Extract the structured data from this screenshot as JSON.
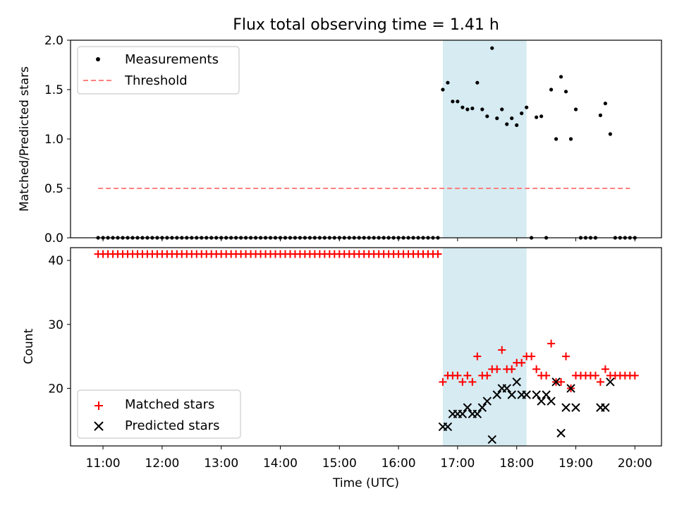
{
  "title": "Flux total observing time = 1.41 h",
  "colors": {
    "shade": "#add8e6",
    "threshold": "#ff8080",
    "matched": "#ff0000",
    "predicted": "#000000",
    "measure": "#000000"
  },
  "chart_data": [
    {
      "type": "scatter",
      "ylabel": "Matched/Predicted stars",
      "ylim": [
        0,
        2
      ],
      "yticks": [
        "0.0",
        "0.5",
        "1.0",
        "1.5",
        "2.0"
      ],
      "legend": {
        "position": "top-left",
        "entries": [
          "Measurements",
          "Threshold"
        ]
      },
      "shaded_interval": [
        "16:45",
        "18:10"
      ],
      "threshold": {
        "y": 0.5,
        "x_start": "10:55",
        "x_end": "19:55"
      },
      "series": [
        {
          "name": "Measurements",
          "points": [
            [
              "10:55",
              0
            ],
            [
              "11:00",
              0
            ],
            [
              "11:05",
              0
            ],
            [
              "11:10",
              0
            ],
            [
              "11:15",
              0
            ],
            [
              "11:20",
              0
            ],
            [
              "11:25",
              0
            ],
            [
              "11:30",
              0
            ],
            [
              "11:35",
              0
            ],
            [
              "11:40",
              0
            ],
            [
              "11:45",
              0
            ],
            [
              "11:50",
              0
            ],
            [
              "11:55",
              0
            ],
            [
              "12:00",
              0
            ],
            [
              "12:05",
              0
            ],
            [
              "12:10",
              0
            ],
            [
              "12:15",
              0
            ],
            [
              "12:20",
              0
            ],
            [
              "12:25",
              0
            ],
            [
              "12:30",
              0
            ],
            [
              "12:35",
              0
            ],
            [
              "12:40",
              0
            ],
            [
              "12:45",
              0
            ],
            [
              "12:50",
              0
            ],
            [
              "12:55",
              0
            ],
            [
              "13:00",
              0
            ],
            [
              "13:05",
              0
            ],
            [
              "13:10",
              0
            ],
            [
              "13:15",
              0
            ],
            [
              "13:20",
              0
            ],
            [
              "13:25",
              0
            ],
            [
              "13:30",
              0
            ],
            [
              "13:35",
              0
            ],
            [
              "13:40",
              0
            ],
            [
              "13:45",
              0
            ],
            [
              "13:50",
              0
            ],
            [
              "13:55",
              0
            ],
            [
              "14:00",
              0
            ],
            [
              "14:05",
              0
            ],
            [
              "14:10",
              0
            ],
            [
              "14:15",
              0
            ],
            [
              "14:20",
              0
            ],
            [
              "14:25",
              0
            ],
            [
              "14:30",
              0
            ],
            [
              "14:35",
              0
            ],
            [
              "14:40",
              0
            ],
            [
              "14:45",
              0
            ],
            [
              "14:50",
              0
            ],
            [
              "14:55",
              0
            ],
            [
              "15:00",
              0
            ],
            [
              "15:05",
              0
            ],
            [
              "15:10",
              0
            ],
            [
              "15:15",
              0
            ],
            [
              "15:20",
              0
            ],
            [
              "15:25",
              0
            ],
            [
              "15:30",
              0
            ],
            [
              "15:35",
              0
            ],
            [
              "15:40",
              0
            ],
            [
              "15:45",
              0
            ],
            [
              "15:50",
              0
            ],
            [
              "15:55",
              0
            ],
            [
              "16:00",
              0
            ],
            [
              "16:05",
              0
            ],
            [
              "16:10",
              0
            ],
            [
              "16:15",
              0
            ],
            [
              "16:20",
              0
            ],
            [
              "16:25",
              0
            ],
            [
              "16:30",
              0
            ],
            [
              "16:35",
              0
            ],
            [
              "16:40",
              0
            ],
            [
              "16:45",
              1.5
            ],
            [
              "16:50",
              1.57
            ],
            [
              "16:55",
              1.38
            ],
            [
              "17:00",
              1.38
            ],
            [
              "17:05",
              1.32
            ],
            [
              "17:10",
              1.3
            ],
            [
              "17:15",
              1.31
            ],
            [
              "17:20",
              1.57
            ],
            [
              "17:25",
              1.3
            ],
            [
              "17:30",
              1.23
            ],
            [
              "17:35",
              1.92
            ],
            [
              "17:40",
              1.21
            ],
            [
              "17:45",
              1.3
            ],
            [
              "17:50",
              1.15
            ],
            [
              "17:55",
              1.21
            ],
            [
              "18:00",
              1.14
            ],
            [
              "18:05",
              1.26
            ],
            [
              "18:10",
              1.32
            ],
            [
              "18:15",
              0
            ],
            [
              "18:20",
              1.22
            ],
            [
              "18:25",
              1.23
            ],
            [
              "18:30",
              0
            ],
            [
              "18:35",
              1.5
            ],
            [
              "18:40",
              1.0
            ],
            [
              "18:45",
              1.63
            ],
            [
              "18:50",
              1.48
            ],
            [
              "18:55",
              1.0
            ],
            [
              "19:00",
              1.3
            ],
            [
              "19:05",
              0
            ],
            [
              "19:10",
              0
            ],
            [
              "19:15",
              0
            ],
            [
              "19:20",
              0
            ],
            [
              "19:25",
              1.24
            ],
            [
              "19:30",
              1.36
            ],
            [
              "19:35",
              1.05
            ],
            [
              "19:40",
              0
            ],
            [
              "19:45",
              0
            ],
            [
              "19:50",
              0
            ],
            [
              "19:55",
              0
            ],
            [
              "20:00",
              0
            ]
          ]
        }
      ]
    },
    {
      "type": "scatter",
      "ylabel": "Count",
      "xlabel": "Time (UTC)",
      "ylim": [
        11,
        42
      ],
      "yticks": [
        "20",
        "30",
        "40"
      ],
      "xticks": [
        "11:00",
        "12:00",
        "13:00",
        "14:00",
        "15:00",
        "16:00",
        "17:00",
        "18:00",
        "19:00",
        "20:00"
      ],
      "legend": {
        "position": "bottom-left",
        "entries": [
          "Matched stars",
          "Predicted stars"
        ]
      },
      "shaded_interval": [
        "16:45",
        "18:10"
      ],
      "series": [
        {
          "name": "Matched stars",
          "points": [
            [
              "10:55",
              41
            ],
            [
              "11:00",
              41
            ],
            [
              "11:05",
              41
            ],
            [
              "11:10",
              41
            ],
            [
              "11:15",
              41
            ],
            [
              "11:20",
              41
            ],
            [
              "11:25",
              41
            ],
            [
              "11:30",
              41
            ],
            [
              "11:35",
              41
            ],
            [
              "11:40",
              41
            ],
            [
              "11:45",
              41
            ],
            [
              "11:50",
              41
            ],
            [
              "11:55",
              41
            ],
            [
              "12:00",
              41
            ],
            [
              "12:05",
              41
            ],
            [
              "12:10",
              41
            ],
            [
              "12:15",
              41
            ],
            [
              "12:20",
              41
            ],
            [
              "12:25",
              41
            ],
            [
              "12:30",
              41
            ],
            [
              "12:35",
              41
            ],
            [
              "12:40",
              41
            ],
            [
              "12:45",
              41
            ],
            [
              "12:50",
              41
            ],
            [
              "12:55",
              41
            ],
            [
              "13:00",
              41
            ],
            [
              "13:05",
              41
            ],
            [
              "13:10",
              41
            ],
            [
              "13:15",
              41
            ],
            [
              "13:20",
              41
            ],
            [
              "13:25",
              41
            ],
            [
              "13:30",
              41
            ],
            [
              "13:35",
              41
            ],
            [
              "13:40",
              41
            ],
            [
              "13:45",
              41
            ],
            [
              "13:50",
              41
            ],
            [
              "13:55",
              41
            ],
            [
              "14:00",
              41
            ],
            [
              "14:05",
              41
            ],
            [
              "14:10",
              41
            ],
            [
              "14:15",
              41
            ],
            [
              "14:20",
              41
            ],
            [
              "14:25",
              41
            ],
            [
              "14:30",
              41
            ],
            [
              "14:35",
              41
            ],
            [
              "14:40",
              41
            ],
            [
              "14:45",
              41
            ],
            [
              "14:50",
              41
            ],
            [
              "14:55",
              41
            ],
            [
              "15:00",
              41
            ],
            [
              "15:05",
              41
            ],
            [
              "15:10",
              41
            ],
            [
              "15:15",
              41
            ],
            [
              "15:20",
              41
            ],
            [
              "15:25",
              41
            ],
            [
              "15:30",
              41
            ],
            [
              "15:35",
              41
            ],
            [
              "15:40",
              41
            ],
            [
              "15:45",
              41
            ],
            [
              "15:50",
              41
            ],
            [
              "15:55",
              41
            ],
            [
              "16:00",
              41
            ],
            [
              "16:05",
              41
            ],
            [
              "16:10",
              41
            ],
            [
              "16:15",
              41
            ],
            [
              "16:20",
              41
            ],
            [
              "16:25",
              41
            ],
            [
              "16:30",
              41
            ],
            [
              "16:35",
              41
            ],
            [
              "16:40",
              41
            ],
            [
              "16:45",
              21
            ],
            [
              "16:50",
              22
            ],
            [
              "16:55",
              22
            ],
            [
              "17:00",
              22
            ],
            [
              "17:05",
              21
            ],
            [
              "17:10",
              22
            ],
            [
              "17:15",
              21
            ],
            [
              "17:20",
              25
            ],
            [
              "17:25",
              22
            ],
            [
              "17:30",
              22
            ],
            [
              "17:35",
              23
            ],
            [
              "17:40",
              23
            ],
            [
              "17:45",
              26
            ],
            [
              "17:50",
              23
            ],
            [
              "17:55",
              23
            ],
            [
              "18:00",
              24
            ],
            [
              "18:05",
              24
            ],
            [
              "18:10",
              25
            ],
            [
              "18:15",
              25
            ],
            [
              "18:20",
              23
            ],
            [
              "18:25",
              22
            ],
            [
              "18:30",
              22
            ],
            [
              "18:35",
              27
            ],
            [
              "18:40",
              21
            ],
            [
              "18:45",
              21
            ],
            [
              "18:50",
              25
            ],
            [
              "18:55",
              20
            ],
            [
              "19:00",
              22
            ],
            [
              "19:05",
              22
            ],
            [
              "19:10",
              22
            ],
            [
              "19:15",
              22
            ],
            [
              "19:20",
              22
            ],
            [
              "19:25",
              21
            ],
            [
              "19:30",
              23
            ],
            [
              "19:35",
              22
            ],
            [
              "19:40",
              22
            ],
            [
              "19:45",
              22
            ],
            [
              "19:50",
              22
            ],
            [
              "19:55",
              22
            ],
            [
              "20:00",
              22
            ]
          ]
        },
        {
          "name": "Predicted stars",
          "points": [
            [
              "16:45",
              14
            ],
            [
              "16:50",
              14
            ],
            [
              "16:55",
              16
            ],
            [
              "17:00",
              16
            ],
            [
              "17:05",
              16
            ],
            [
              "17:10",
              17
            ],
            [
              "17:15",
              16
            ],
            [
              "17:20",
              16
            ],
            [
              "17:25",
              17
            ],
            [
              "17:30",
              18
            ],
            [
              "17:35",
              12
            ],
            [
              "17:40",
              19
            ],
            [
              "17:45",
              20
            ],
            [
              "17:50",
              20
            ],
            [
              "17:55",
              19
            ],
            [
              "18:00",
              21
            ],
            [
              "18:05",
              19
            ],
            [
              "18:10",
              19
            ],
            [
              "18:20",
              19
            ],
            [
              "18:25",
              18
            ],
            [
              "18:30",
              19
            ],
            [
              "18:35",
              18
            ],
            [
              "18:40",
              21
            ],
            [
              "18:45",
              13
            ],
            [
              "18:50",
              17
            ],
            [
              "18:55",
              20
            ],
            [
              "19:00",
              17
            ],
            [
              "19:25",
              17
            ],
            [
              "19:30",
              17
            ],
            [
              "19:35",
              21
            ]
          ]
        }
      ]
    }
  ]
}
